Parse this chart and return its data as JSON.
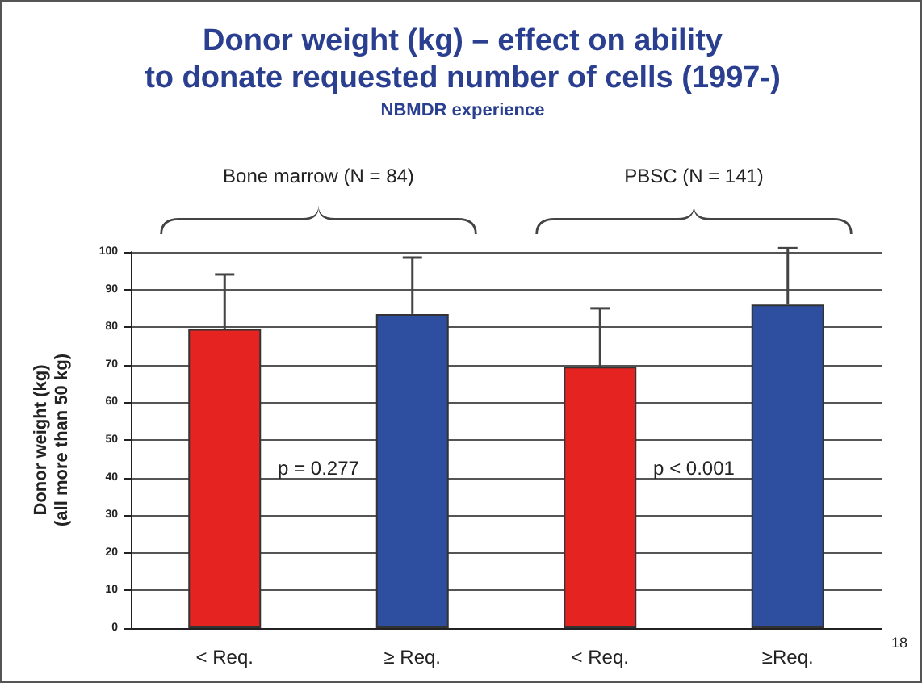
{
  "chart_data": {
    "type": "bar",
    "title": "Donor weight (kg) – effect on ability\nto donate requested number of cells (1997-)",
    "subtitle": "NBMDR experience",
    "ylabel": "Donor weight (kg)\n(all more than 50 kg)",
    "categories": [
      "< Req.",
      "≥ Req.",
      "< Req.",
      "≥Req."
    ],
    "values": [
      79.5,
      83.5,
      69.5,
      86
    ],
    "colors": [
      "#e52421",
      "#2e4f9f",
      "#e52421",
      "#2e4f9f"
    ],
    "errors": [
      [
        79.5,
        94
      ],
      [
        83.5,
        98.5
      ],
      [
        69.5,
        85
      ],
      [
        86,
        101
      ]
    ],
    "ylim": [
      0,
      100
    ],
    "yticks": [
      0,
      10,
      20,
      30,
      40,
      50,
      60,
      70,
      80,
      90,
      100
    ],
    "grid": "y",
    "annotations": [
      "Bone marrow (N = 84)",
      "PBSC (N = 141)",
      "p = 0.277",
      "p < 0.001",
      "18"
    ]
  }
}
